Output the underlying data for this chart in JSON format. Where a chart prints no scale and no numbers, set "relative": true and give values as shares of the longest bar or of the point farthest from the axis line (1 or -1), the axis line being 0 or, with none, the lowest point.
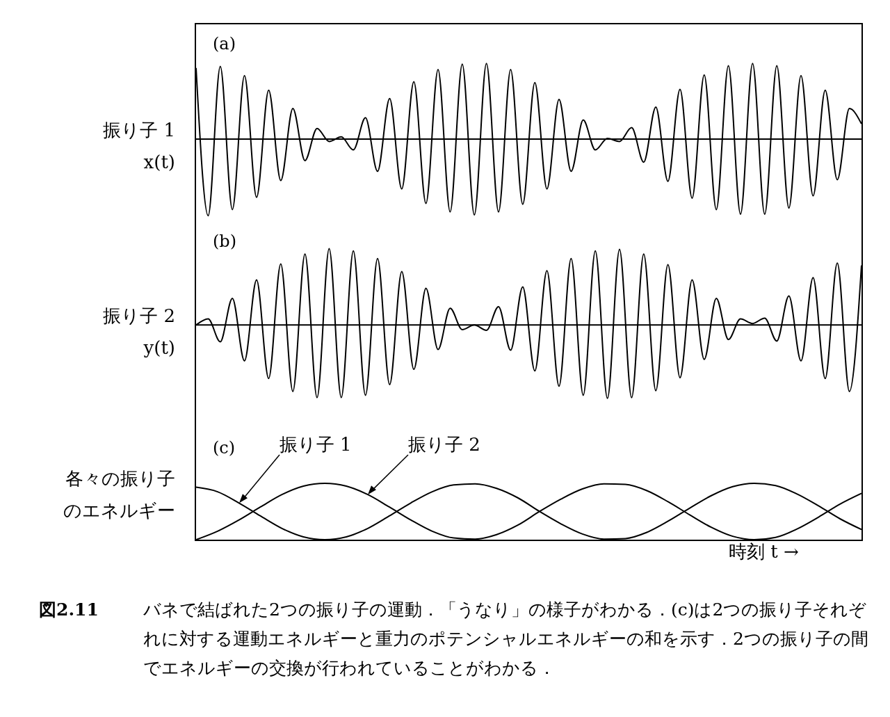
{
  "chart_data": [
    {
      "type": "line",
      "title": "(a)",
      "ylabel": "振り子 1\nx(t)",
      "relative": true,
      "line_style": "solid",
      "marker": "none",
      "categories": [
        null,
        null,
        null,
        null,
        null,
        null,
        null,
        null,
        null,
        null,
        null,
        null,
        null,
        null,
        null,
        null,
        null,
        null,
        null,
        null,
        null,
        null,
        null,
        null,
        null,
        null,
        null,
        null,
        null,
        null,
        null,
        null,
        null,
        null,
        null,
        null,
        null,
        null,
        null,
        null,
        null,
        null,
        null,
        null,
        null,
        null,
        null,
        null,
        null,
        null,
        null,
        null,
        null,
        null,
        null,
        null
      ],
      "series": [
        {
          "color": "#000000",
          "values": [
            0.93,
            -1,
            0.95,
            -0.92,
            0.83,
            -0.76,
            0.64,
            -0.54,
            0.4,
            -0.28,
            0.14,
            -0.03,
            0.03,
            -0.14,
            0.28,
            -0.42,
            0.53,
            -0.65,
            0.75,
            -0.84,
            0.91,
            -0.95,
            0.98,
            -0.99,
            0.99,
            -0.95,
            0.91,
            -0.85,
            0.74,
            -0.65,
            0.52,
            -0.42,
            0.25,
            -0.14,
            0.01,
            -0.03,
            0.15,
            -0.3,
            0.42,
            -0.55,
            0.65,
            -0.77,
            0.84,
            -0.92,
            0.96,
            -0.98,
            0.99,
            -0.98,
            0.96,
            -0.9,
            0.83,
            -0.74,
            0.64,
            -0.53,
            0.4,
            0.2
          ]
        }
      ]
    },
    {
      "type": "line",
      "title": "(b)",
      "ylabel": "振り子 2\ny(t)",
      "relative": true,
      "line_style": "solid",
      "marker": "none",
      "categories": [
        null,
        null,
        null,
        null,
        null,
        null,
        null,
        null,
        null,
        null,
        null,
        null,
        null,
        null,
        null,
        null,
        null,
        null,
        null,
        null,
        null,
        null,
        null,
        null,
        null,
        null,
        null,
        null,
        null,
        null,
        null,
        null,
        null,
        null,
        null,
        null,
        null,
        null,
        null,
        null,
        null,
        null,
        null,
        null,
        null,
        null,
        null,
        null,
        null,
        null,
        null,
        null,
        null,
        null,
        null,
        null
      ],
      "series": [
        {
          "color": "#000000",
          "values": [
            0,
            0.08,
            -0.22,
            0.35,
            -0.47,
            0.59,
            -0.7,
            0.8,
            -0.87,
            0.93,
            -0.95,
            1,
            -0.95,
            0.97,
            -0.92,
            0.87,
            -0.78,
            0.7,
            -0.58,
            0.48,
            -0.32,
            0.22,
            -0.06,
            0,
            -0.07,
            0.24,
            -0.33,
            0.5,
            -0.6,
            0.71,
            -0.8,
            0.87,
            -0.92,
            0.97,
            -0.96,
            0.99,
            -0.95,
            0.93,
            -0.86,
            0.79,
            -0.69,
            0.59,
            -0.45,
            0.35,
            -0.19,
            0.08,
            0.02,
            0.09,
            -0.21,
            0.38,
            -0.47,
            0.62,
            -0.7,
            0.81,
            -0.87,
            0.78
          ]
        }
      ]
    },
    {
      "type": "line",
      "title": "(c)",
      "ylabel": "各々の振り子のエネルギー",
      "xlabel": "時刻 t →",
      "relative": true,
      "line_style": "solid",
      "marker": "none",
      "categories": [
        null,
        null,
        null,
        null,
        null,
        null,
        null,
        null,
        null,
        null,
        null,
        null,
        null,
        null,
        null,
        null,
        null,
        null,
        null,
        null,
        null,
        null,
        null,
        null,
        null,
        null,
        null,
        null,
        null,
        null,
        null,
        null
      ],
      "series": [
        {
          "name": "振り子 1",
          "color": "#000000",
          "values": [
            0.93,
            0.85,
            0.65,
            0.42,
            0.2,
            0.05,
            0,
            0.05,
            0.2,
            0.42,
            0.65,
            0.85,
            0.97,
            0.99,
            0.91,
            0.74,
            0.5,
            0.28,
            0.1,
            0.01,
            0.02,
            0.13,
            0.33,
            0.56,
            0.78,
            0.94,
            1,
            0.96,
            0.81,
            0.6,
            0.37,
            0.18
          ]
        },
        {
          "name": "振り子 2",
          "color": "#000000",
          "values": [
            0,
            0.15,
            0.35,
            0.58,
            0.8,
            0.95,
            1,
            0.95,
            0.8,
            0.58,
            0.35,
            0.15,
            0.03,
            0.01,
            0.09,
            0.26,
            0.5,
            0.72,
            0.9,
            0.99,
            0.98,
            0.87,
            0.67,
            0.44,
            0.22,
            0.06,
            0,
            0.04,
            0.19,
            0.4,
            0.63,
            0.82
          ]
        }
      ],
      "annotations": [
        "図2.11 バネで結ばれた2つの振り子の運動．「うなり」の様子がわかる．(c)は2つの振り子それぞれに対する運動エネルギーと重力のポテンシャルエネルギーの和を示す．2つの振り子の間でエネルギーの交換が行われていることがわかる．"
      ]
    }
  ]
}
